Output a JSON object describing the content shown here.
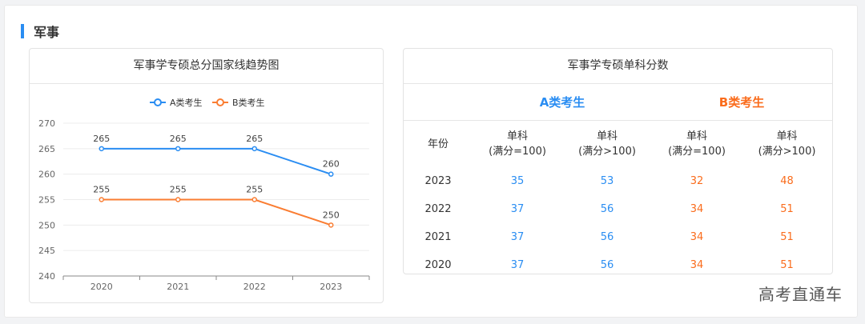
{
  "section": {
    "title": "军事"
  },
  "chart_card": {
    "title": "军事学专硕总分国家线趋势图"
  },
  "chart_data": {
    "type": "line",
    "title": "军事学专硕总分国家线趋势图",
    "categories": [
      "2020",
      "2021",
      "2022",
      "2023"
    ],
    "series": [
      {
        "name": "A类考生",
        "color": "#2a8df2",
        "values": [
          265,
          265,
          265,
          260
        ]
      },
      {
        "name": "B类考生",
        "color": "#fa7d32",
        "values": [
          255,
          255,
          255,
          250
        ]
      }
    ],
    "ylim": [
      240,
      270
    ],
    "yticks": [
      "270",
      "265",
      "260",
      "255",
      "250",
      "245",
      "240"
    ],
    "grid": true,
    "legend": "top-center"
  },
  "table_card": {
    "title": "军事学专硕单科分数",
    "group_a": "A类考生",
    "group_b": "B类考生",
    "headers": [
      {
        "l1": "年份",
        "l2": ""
      },
      {
        "l1": "单科",
        "l2": "(满分=100)"
      },
      {
        "l1": "单科",
        "l2": "(满分>100)"
      },
      {
        "l1": "单科",
        "l2": "(满分=100)"
      },
      {
        "l1": "单科",
        "l2": "(满分>100)"
      }
    ],
    "rows": [
      {
        "year": "2023",
        "a100": "35",
        "a_gt": "53",
        "b100": "32",
        "b_gt": "48"
      },
      {
        "year": "2022",
        "a100": "37",
        "a_gt": "56",
        "b100": "34",
        "b_gt": "51"
      },
      {
        "year": "2021",
        "a100": "37",
        "a_gt": "56",
        "b100": "34",
        "b_gt": "51"
      },
      {
        "year": "2020",
        "a100": "37",
        "a_gt": "56",
        "b100": "34",
        "b_gt": "51"
      }
    ]
  },
  "watermark": "高考直通车",
  "colors": {
    "accent": "#2a8df2",
    "series_a": "#2a8df2",
    "series_b": "#fa7d32",
    "text_b": "#fa6c1c"
  }
}
